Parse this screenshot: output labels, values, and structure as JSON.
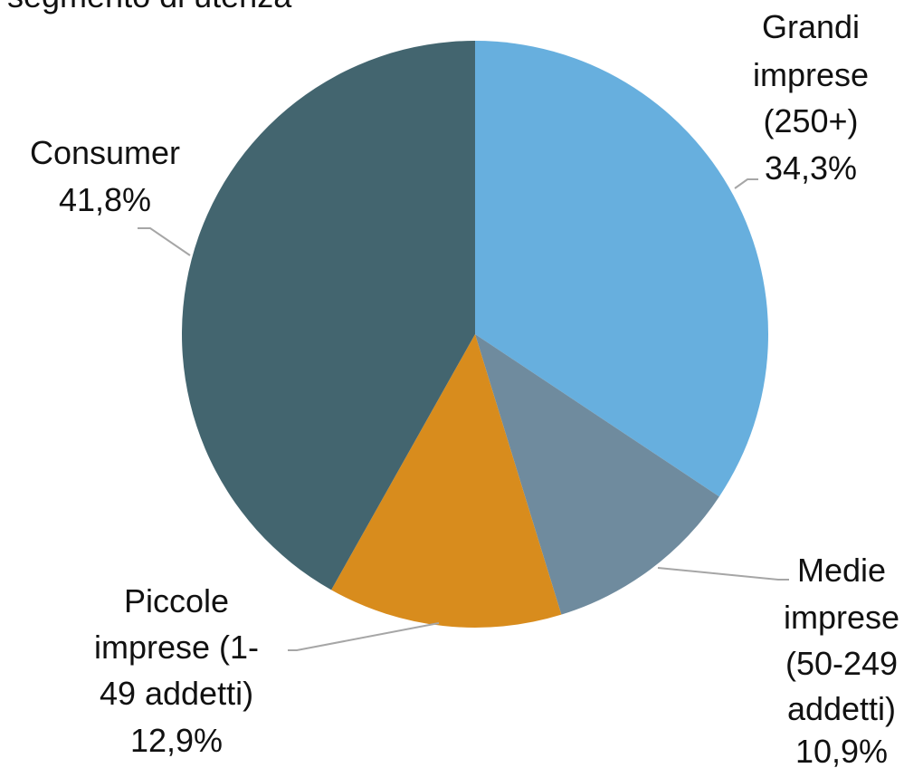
{
  "chart_data": {
    "type": "pie",
    "title": "segmento di utenza",
    "slices": [
      {
        "label": "Grandi imprese (250+)",
        "value": 34.3,
        "value_label": "34,3%",
        "color": "#67AFDE"
      },
      {
        "label": "Medie imprese (50-249 addetti)",
        "value": 10.9,
        "value_label": "10,9%",
        "color": "#6F8B9E"
      },
      {
        "label": "Piccole imprese (1-49 addetti)",
        "value": 12.9,
        "value_label": "12,9%",
        "color": "#D88C1D"
      },
      {
        "label": "Consumer",
        "value": 41.8,
        "value_label": "41,8%",
        "color": "#43656F"
      }
    ],
    "start_angle_deg": 0,
    "direction": "clockwise",
    "legend": "none"
  },
  "labels": {
    "grandi": [
      "Grandi",
      "imprese",
      "(250+)"
    ],
    "medie": [
      "Medie",
      "imprese",
      "(50-249",
      "addetti)"
    ],
    "piccole": [
      "Piccole",
      "imprese (1-",
      "49 addetti)"
    ],
    "consumer": [
      "Consumer"
    ]
  }
}
